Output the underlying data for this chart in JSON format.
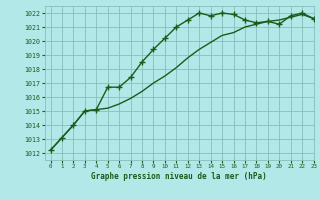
{
  "title": "Graphe pression niveau de la mer (hPa)",
  "bg_color": "#b3e8e8",
  "grid_color": "#8bbcbc",
  "line_color": "#1a5c1a",
  "marker_color": "#1a5c1a",
  "hours": [
    0,
    1,
    2,
    3,
    4,
    5,
    6,
    7,
    8,
    9,
    10,
    11,
    12,
    13,
    14,
    15,
    16,
    17,
    18,
    19,
    20,
    21,
    22,
    23
  ],
  "line1": [
    1012.2,
    1013.1,
    1014.0,
    1015.0,
    1015.1,
    1016.7,
    1016.7,
    1017.4,
    1018.5,
    1019.4,
    1020.2,
    1021.0,
    1021.5,
    1022.0,
    1021.8,
    1022.0,
    1021.9,
    1021.5,
    1021.3,
    1021.4,
    1021.2,
    1021.8,
    1022.0,
    1021.6
  ],
  "line2": [
    1012.2,
    1013.1,
    1014.0,
    1015.0,
    1015.1,
    1015.2,
    1015.5,
    1015.9,
    1016.4,
    1017.0,
    1017.5,
    1018.1,
    1018.8,
    1019.4,
    1019.9,
    1020.4,
    1020.6,
    1021.0,
    1021.2,
    1021.4,
    1021.5,
    1021.7,
    1021.9,
    1021.6
  ],
  "ylim": [
    1011.5,
    1022.5
  ],
  "yticks": [
    1012,
    1013,
    1014,
    1015,
    1016,
    1017,
    1018,
    1019,
    1020,
    1021,
    1022
  ],
  "xlim": [
    -0.5,
    23
  ],
  "xticks": [
    0,
    1,
    2,
    3,
    4,
    5,
    6,
    7,
    8,
    9,
    10,
    11,
    12,
    13,
    14,
    15,
    16,
    17,
    18,
    19,
    20,
    21,
    22,
    23
  ]
}
